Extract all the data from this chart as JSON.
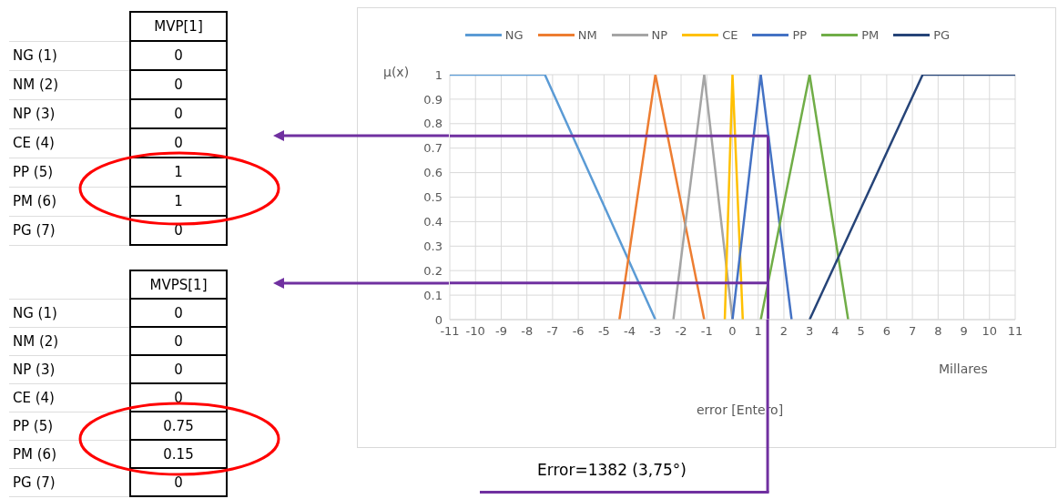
{
  "chart_data": [
    {
      "type": "heatmap",
      "categories": [
        "MVP[1]"
      ],
      "y_categories": [
        "NG (1)",
        "NM (2)",
        "NP (3)",
        "CE (4)",
        "PP (5)",
        "PM (6)",
        "PG (7)"
      ],
      "cells": [
        [
          0
        ],
        [
          0
        ],
        [
          0
        ],
        [
          0
        ],
        [
          1
        ],
        [
          1
        ],
        [
          0
        ]
      ],
      "data_labels": true
    },
    {
      "type": "heatmap",
      "categories": [
        "MVPS[1]"
      ],
      "y_categories": [
        "NG (1)",
        "NM (2)",
        "NP (3)",
        "CE (4)",
        "PP (5)",
        "PM (6)",
        "PG (7)"
      ],
      "cells": [
        [
          0
        ],
        [
          0
        ],
        [
          0
        ],
        [
          0
        ],
        [
          0.75
        ],
        [
          0.15
        ],
        [
          0
        ]
      ],
      "data_labels": true
    },
    {
      "type": "line",
      "xlabel": "error [Entero]",
      "ylabel": "μ(x)",
      "xlim": [
        -11,
        11
      ],
      "xticks": [
        -11,
        -10,
        -9,
        -8,
        -7,
        -6,
        -5,
        -4,
        -3,
        -2,
        -1,
        0,
        1,
        2,
        3,
        4,
        5,
        6,
        7,
        8,
        9,
        10,
        11
      ],
      "ylim": [
        0,
        1
      ],
      "yticks": [
        0,
        0.1,
        0.2,
        0.3,
        0.4,
        0.5,
        0.6,
        0.7,
        0.8,
        0.9,
        1
      ],
      "grid": true,
      "legend": "top",
      "marker": "none",
      "series": [
        {
          "name": "NG",
          "color": "#5b9bd5",
          "x": [
            -11,
            -7.3,
            -3
          ],
          "values": [
            1,
            1,
            0
          ]
        },
        {
          "name": "NM",
          "color": "#ed7d31",
          "x": [
            -4.4,
            -3,
            -1.1
          ],
          "values": [
            0,
            1,
            0
          ]
        },
        {
          "name": "NP",
          "color": "#a5a5a5",
          "x": [
            -2.3,
            -1.1,
            0
          ],
          "values": [
            0,
            1,
            0
          ]
        },
        {
          "name": "CE",
          "color": "#ffc000",
          "x": [
            -0.3,
            0,
            0.4
          ],
          "values": [
            0,
            1,
            0
          ]
        },
        {
          "name": "PP",
          "color": "#4472c4",
          "x": [
            0,
            1.1,
            2.3
          ],
          "values": [
            0,
            1,
            0
          ]
        },
        {
          "name": "PM",
          "color": "#70ad47",
          "x": [
            1.1,
            3,
            4.5
          ],
          "values": [
            0,
            1,
            0
          ]
        },
        {
          "name": "PG",
          "color": "#264478",
          "x": [
            3,
            7.4,
            11
          ],
          "values": [
            0,
            1,
            1
          ]
        }
      ],
      "ref_lines": [
        {
          "axis": "y",
          "value": 0.75,
          "color": "#7030a0"
        },
        {
          "axis": "y",
          "value": 0.15,
          "color": "#7030a0"
        },
        {
          "axis": "x",
          "value": 1.382,
          "color": "#7030a0"
        }
      ],
      "annotations": [
        "Millares",
        "Error=1382 (3,75°)"
      ]
    }
  ]
}
